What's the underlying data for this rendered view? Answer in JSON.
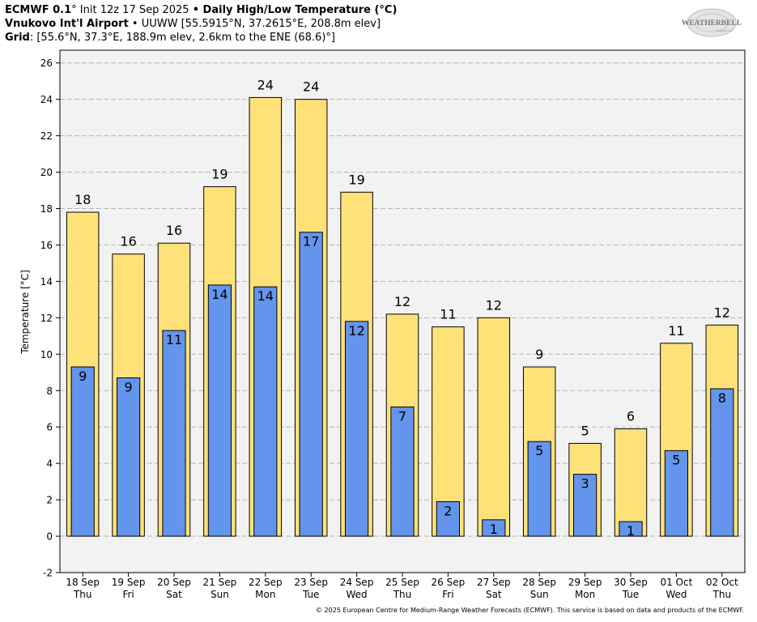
{
  "header": {
    "line1_model": "ECMWF 0.1",
    "line1_deg": "°",
    "line1_init": " Init 12z 17 Sep 2025 ",
    "line1_bullet": "•",
    "line1_title": " Daily High/Low Temperature (°C)",
    "line2_station": "Vnukovo Int'l Airport",
    "line2_rest": " • UUWW [55.5915°N, 37.2615°E, 208.8m elev]",
    "line3_label": "Grid",
    "line3_rest": ": [55.6°N, 37.3°E, 188.9m elev, 2.6km to the ENE (68.6)°]"
  },
  "logo": {
    "text": "WEATHERBELL",
    "sub": "Analytics LLC"
  },
  "footer": "© 2025 European Centre for Medium-Range Weather Forecasts (ECMWF). This service is based on data and products of the ECMWF.",
  "chart_data": {
    "type": "bar",
    "ylabel": "Temperature [°C]",
    "ylim": [
      -2,
      26.7
    ],
    "yticks": [
      -2,
      0,
      2,
      4,
      6,
      8,
      10,
      12,
      14,
      16,
      18,
      20,
      22,
      24,
      26
    ],
    "grid": true,
    "categories": [
      "18 Sep",
      "19 Sep",
      "20 Sep",
      "21 Sep",
      "22 Sep",
      "23 Sep",
      "24 Sep",
      "25 Sep",
      "26 Sep",
      "27 Sep",
      "28 Sep",
      "29 Sep",
      "30 Sep",
      "01 Oct",
      "02 Oct"
    ],
    "weekdays": [
      "Thu",
      "Fri",
      "Sat",
      "Sun",
      "Mon",
      "Tue",
      "Wed",
      "Thu",
      "Fri",
      "Sat",
      "Sun",
      "Mon",
      "Tue",
      "Wed",
      "Thu"
    ],
    "series": [
      {
        "color": "#ffe17a",
        "values": [
          17.8,
          15.5,
          16.1,
          19.2,
          24.1,
          24.0,
          18.9,
          12.2,
          11.5,
          12.0,
          9.3,
          5.1,
          5.9,
          10.6,
          11.6
        ],
        "labels": [
          "18",
          "16",
          "16",
          "19",
          "24",
          "24",
          "19",
          "12",
          "11",
          "12",
          "9",
          "5",
          "6",
          "11",
          "12"
        ]
      },
      {
        "color": "#6495ed",
        "values": [
          9.3,
          8.7,
          11.3,
          13.8,
          13.7,
          16.7,
          11.8,
          7.1,
          1.9,
          0.9,
          5.2,
          3.4,
          0.8,
          4.7,
          8.1
        ],
        "labels": [
          "9",
          "9",
          "11",
          "14",
          "14",
          "17",
          "12",
          "7",
          "2",
          "1",
          "5",
          "3",
          "1",
          "5",
          "8"
        ]
      }
    ]
  }
}
